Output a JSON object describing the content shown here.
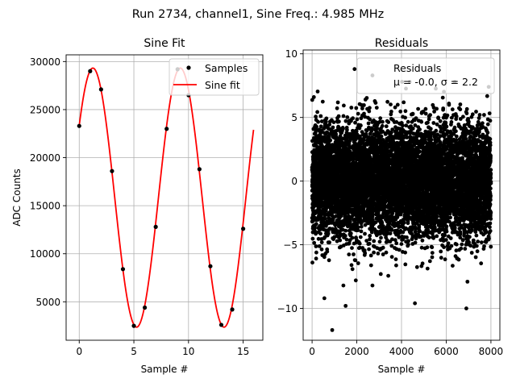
{
  "suptitle": "Run 2734, channel1, Sine Freq.: 4.985 MHz",
  "colors": {
    "fit": "#ff0000",
    "points": "#000000",
    "grid": "#b0b0b0"
  },
  "chart_data": [
    {
      "type": "scatter+line",
      "title": "Sine Fit",
      "xlabel": "Sample #",
      "ylabel": "ADC Counts",
      "xlim": [
        -1.2,
        16.8
      ],
      "ylim": [
        1000,
        30700
      ],
      "xticks": [
        0,
        5,
        10,
        15
      ],
      "yticks": [
        5000,
        10000,
        15000,
        20000,
        25000,
        30000
      ],
      "grid": true,
      "legend_position": "top-right",
      "series": [
        {
          "name": "Samples",
          "kind": "scatter",
          "x": [
            0,
            1,
            2,
            3,
            4,
            5,
            6,
            7,
            8,
            9,
            10,
            11,
            12,
            13,
            14,
            15
          ],
          "y": [
            23300,
            29000,
            27100,
            18600,
            8400,
            2500,
            4400,
            12800,
            23000,
            29200,
            26500,
            18800,
            8700,
            2600,
            4200,
            12600
          ]
        },
        {
          "name": "Sine fit",
          "kind": "line",
          "model": {
            "offset": 15840,
            "amplitude": 13480,
            "period": 8.0,
            "phase": 0.59,
            "x_range": [
              0,
              15.95
            ]
          }
        }
      ]
    },
    {
      "type": "scatter",
      "title": "Residuals",
      "xlabel": "Sample #",
      "ylabel": "",
      "xlim": [
        -400,
        8400
      ],
      "ylim": [
        -12.5,
        10.3
      ],
      "xticks": [
        0,
        2000,
        4000,
        6000,
        8000
      ],
      "yticks": [
        -10,
        -5,
        0,
        5,
        10
      ],
      "grid": true,
      "legend_position": "top-right",
      "legend": [
        "Residuals",
        "μ = -0.0, σ = 2.2"
      ],
      "series": [
        {
          "name": "Residuals",
          "kind": "scatter",
          "n_points": 8000,
          "mean": 0.0,
          "std": 2.2,
          "outliers": [
            {
              "x": 900,
              "y": -11.7
            },
            {
              "x": 6900,
              "y": -10.0
            },
            {
              "x": 1500,
              "y": -9.8
            },
            {
              "x": 550,
              "y": -9.2
            },
            {
              "x": 4600,
              "y": -9.6
            },
            {
              "x": 2700,
              "y": -8.2
            },
            {
              "x": 1400,
              "y": -8.2
            },
            {
              "x": 1900,
              "y": 8.8
            },
            {
              "x": 2700,
              "y": 8.3
            },
            {
              "x": 7900,
              "y": 7.4
            },
            {
              "x": 6950,
              "y": -7.9
            },
            {
              "x": 80,
              "y": 6.6
            }
          ]
        }
      ]
    }
  ]
}
